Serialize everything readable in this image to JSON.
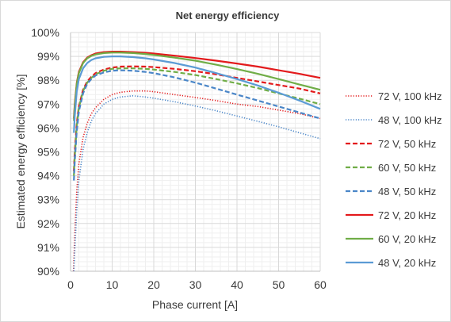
{
  "chart_data": {
    "type": "line",
    "title": "Net energy efficiency",
    "xlabel": "Phase current [A]",
    "ylabel": "Estimated energy efficiency [%]",
    "xlim": [
      0,
      60
    ],
    "ylim": [
      90,
      100
    ],
    "x_ticks": [
      0,
      10,
      20,
      30,
      40,
      50,
      60
    ],
    "y_ticks": [
      90,
      91,
      92,
      93,
      94,
      95,
      96,
      97,
      98,
      99,
      100
    ],
    "x_tick_labels": [
      "0",
      "10",
      "20",
      "30",
      "40",
      "50",
      "60"
    ],
    "y_tick_labels": [
      "90%",
      "91%",
      "92%",
      "93%",
      "94%",
      "95%",
      "96%",
      "97%",
      "98%",
      "99%",
      "100%"
    ],
    "grid": true,
    "legend_position": "right",
    "series": [
      {
        "name": "72 V, 100 kHz",
        "color": "#e31a1c",
        "dash": "dotted",
        "x": [
          0.7,
          1,
          1.5,
          2,
          3,
          4,
          5,
          6,
          8,
          10,
          12,
          15,
          18,
          20,
          25,
          30,
          35,
          40,
          45,
          50,
          55,
          60
        ],
        "y": [
          90.0,
          91.5,
          93.4,
          94.5,
          95.6,
          96.2,
          96.6,
          96.85,
          97.2,
          97.4,
          97.5,
          97.55,
          97.55,
          97.52,
          97.4,
          97.28,
          97.15,
          97.0,
          96.9,
          96.75,
          96.6,
          96.4
        ]
      },
      {
        "name": "48 V, 100 kHz",
        "color": "#4a86c8",
        "dash": "dotted",
        "x": [
          0.8,
          1,
          1.5,
          2,
          3,
          4,
          5,
          6,
          8,
          10,
          12,
          15,
          18,
          20,
          25,
          30,
          35,
          40,
          45,
          50,
          55,
          60
        ],
        "y": [
          90.0,
          90.8,
          92.6,
          93.8,
          95.1,
          95.8,
          96.3,
          96.6,
          97.0,
          97.2,
          97.3,
          97.35,
          97.3,
          97.25,
          97.1,
          96.92,
          96.72,
          96.5,
          96.28,
          96.05,
          95.8,
          95.55
        ]
      },
      {
        "name": "72 V, 50 kHz",
        "color": "#e31a1c",
        "dash": "dashed",
        "x": [
          0.8,
          1,
          1.5,
          2,
          3,
          4,
          5,
          6,
          8,
          10,
          12,
          15,
          18,
          20,
          25,
          30,
          35,
          40,
          45,
          50,
          55,
          60
        ],
        "y": [
          94.2,
          95.0,
          96.2,
          96.9,
          97.6,
          97.95,
          98.15,
          98.3,
          98.45,
          98.53,
          98.57,
          98.58,
          98.57,
          98.55,
          98.48,
          98.38,
          98.25,
          98.1,
          97.95,
          97.8,
          97.65,
          97.45
        ]
      },
      {
        "name": "60 V, 50 kHz",
        "color": "#70ad47",
        "dash": "dashed",
        "x": [
          0.8,
          1,
          1.5,
          2,
          3,
          4,
          5,
          6,
          8,
          10,
          12,
          15,
          18,
          20,
          25,
          30,
          35,
          40,
          45,
          50,
          55,
          60
        ],
        "y": [
          94.0,
          94.8,
          96.1,
          96.85,
          97.55,
          97.9,
          98.1,
          98.25,
          98.4,
          98.48,
          98.5,
          98.5,
          98.48,
          98.45,
          98.35,
          98.22,
          98.05,
          97.87,
          97.67,
          97.45,
          97.23,
          97.0
        ]
      },
      {
        "name": "48 V, 50 kHz",
        "color": "#4a86c8",
        "dash": "dashed",
        "x": [
          0.8,
          1,
          1.5,
          2,
          3,
          4,
          5,
          6,
          8,
          10,
          12,
          15,
          18,
          20,
          25,
          30,
          35,
          40,
          45,
          50,
          55,
          60
        ],
        "y": [
          93.8,
          94.6,
          95.9,
          96.7,
          97.45,
          97.85,
          98.05,
          98.2,
          98.33,
          98.4,
          98.42,
          98.4,
          98.35,
          98.3,
          98.12,
          97.9,
          97.65,
          97.4,
          97.15,
          96.9,
          96.65,
          96.4
        ]
      },
      {
        "name": "72 V, 20 kHz",
        "color": "#e31a1c",
        "dash": "solid",
        "x": [
          0.8,
          1,
          1.5,
          2,
          3,
          4,
          5,
          6,
          8,
          10,
          12,
          15,
          18,
          20,
          25,
          30,
          35,
          40,
          45,
          50,
          55,
          60
        ],
        "y": [
          96.4,
          97.0,
          97.9,
          98.35,
          98.75,
          98.95,
          99.05,
          99.12,
          99.18,
          99.2,
          99.2,
          99.18,
          99.15,
          99.12,
          99.03,
          98.93,
          98.82,
          98.7,
          98.57,
          98.42,
          98.27,
          98.1
        ]
      },
      {
        "name": "60 V, 20 kHz",
        "color": "#70ad47",
        "dash": "solid",
        "x": [
          0.8,
          1,
          1.5,
          2,
          3,
          4,
          5,
          6,
          8,
          10,
          12,
          15,
          18,
          20,
          25,
          30,
          35,
          40,
          45,
          50,
          55,
          60
        ],
        "y": [
          96.3,
          96.9,
          97.85,
          98.3,
          98.72,
          98.92,
          99.02,
          99.08,
          99.14,
          99.16,
          99.16,
          99.14,
          99.1,
          99.06,
          98.95,
          98.82,
          98.65,
          98.47,
          98.27,
          98.05,
          97.82,
          97.6
        ]
      },
      {
        "name": "48 V, 20 kHz",
        "color": "#5b9bd5",
        "dash": "solid",
        "x": [
          0.8,
          1,
          1.5,
          2,
          3,
          4,
          5,
          6,
          8,
          10,
          12,
          15,
          18,
          20,
          25,
          30,
          35,
          40,
          45,
          50,
          55,
          60
        ],
        "y": [
          95.8,
          96.5,
          97.55,
          98.05,
          98.5,
          98.72,
          98.85,
          98.92,
          98.98,
          99.0,
          99.0,
          98.97,
          98.92,
          98.87,
          98.72,
          98.53,
          98.3,
          98.05,
          97.78,
          97.48,
          97.15,
          96.8
        ]
      }
    ]
  }
}
